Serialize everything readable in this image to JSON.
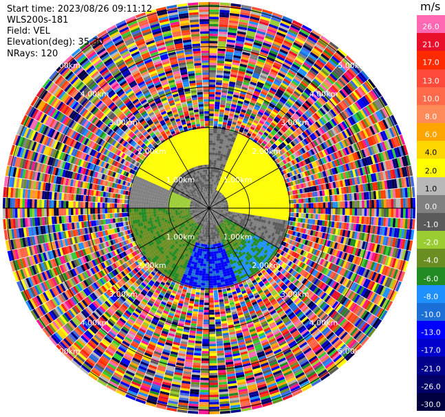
{
  "header": {
    "start_time": "Start time: 2023/08/26 09:11:12",
    "instrument": "WLS200s-181",
    "field": "Field: VEL",
    "elevation": "Elevation(deg): 35.30",
    "nrays": "NRays: 120"
  },
  "colorbar": {
    "unit": "m/s",
    "levels": [
      {
        "label": "26.0",
        "color": "#ff69b4"
      },
      {
        "label": "21.0",
        "color": "#e8102a"
      },
      {
        "label": "17.0",
        "color": "#ff2a00"
      },
      {
        "label": "13.0",
        "color": "#ff4a3a"
      },
      {
        "label": "10.0",
        "color": "#ff6a4a"
      },
      {
        "label": "8.0",
        "color": "#ff8a5a"
      },
      {
        "label": "6.0",
        "color": "#ffa500"
      },
      {
        "label": "4.0",
        "color": "#ffd700"
      },
      {
        "label": "2.0",
        "color": "#ffff00"
      },
      {
        "label": "1.0",
        "color": "#b8b8b8"
      },
      {
        "label": "0.0",
        "color": "#808080"
      },
      {
        "label": "-1.0",
        "color": "#5a5a5a"
      },
      {
        "label": "-2.0",
        "color": "#9acd32"
      },
      {
        "label": "-4.0",
        "color": "#6b8e23"
      },
      {
        "label": "-6.0",
        "color": "#228b22"
      },
      {
        "label": "-8.0",
        "color": "#1e90ff"
      },
      {
        "label": "-10.0",
        "color": "#1c6fd6"
      },
      {
        "label": "-13.0",
        "color": "#0000ff"
      },
      {
        "label": "-17.0",
        "color": "#0000cd"
      },
      {
        "label": "-21.0",
        "color": "#00008b"
      },
      {
        "label": "-26.0",
        "color": "#000066"
      },
      {
        "label": "-30.0",
        "color": "#000040"
      }
    ]
  },
  "chart_data": {
    "type": "heatmap",
    "title": "",
    "field": "VEL",
    "units": "m/s",
    "nrays": 120,
    "elevation_deg": 35.3,
    "range_rings_km": [
      1.0,
      2.0,
      3.0,
      4.0,
      5.0
    ],
    "ring_labels": [
      "1.00km",
      "2.00km",
      "3.00km",
      "4.00km",
      "5.00km"
    ],
    "azimuth_lines_deg": [
      0,
      30,
      60,
      90,
      120,
      150,
      180,
      210,
      240,
      270,
      300,
      330
    ],
    "max_range_km": 5.1,
    "regions": [
      {
        "name": "near-gray",
        "range_km": [
          0.0,
          0.8
        ],
        "value_ms": 0.0
      },
      {
        "name": "northeast-yellow",
        "azimuth_deg": [
          30,
          90
        ],
        "range_km": [
          0.3,
          2.0
        ],
        "value_ms": 2.0
      },
      {
        "name": "northwest-yellow",
        "azimuth_deg": [
          300,
          360
        ],
        "range_km": [
          1.2,
          1.7
        ],
        "value_ms": 2.0
      },
      {
        "name": "south-green",
        "azimuth_deg": [
          200,
          260
        ],
        "range_km": [
          0.3,
          2.0
        ],
        "value_ms": -3.0
      },
      {
        "name": "south-blue",
        "azimuth_deg": [
          160,
          200
        ],
        "range_km": [
          1.0,
          2.0
        ],
        "value_ms": -8.0
      },
      {
        "name": "outer-noise",
        "range_km": [
          2.0,
          5.1
        ],
        "value_ms": "random"
      }
    ]
  }
}
